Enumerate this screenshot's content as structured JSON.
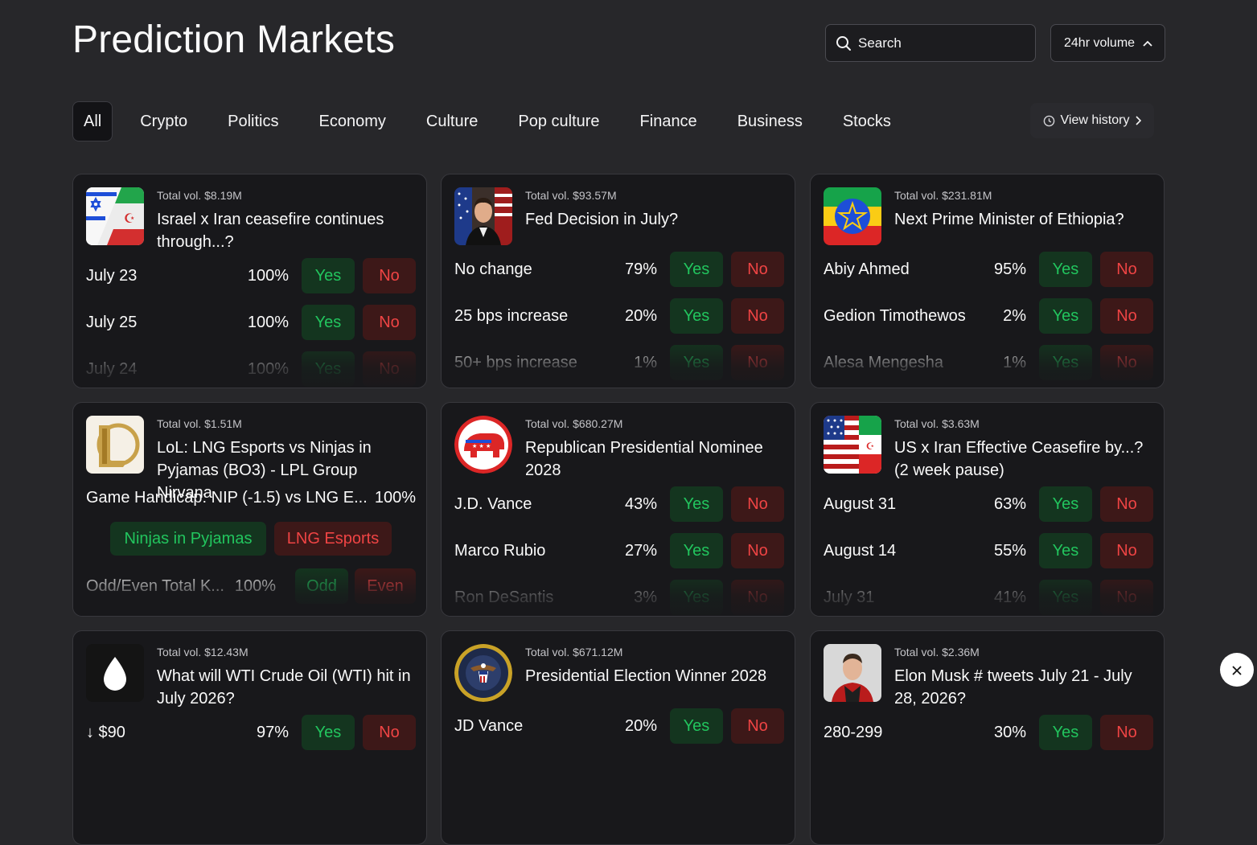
{
  "header": {
    "title": "Prediction Markets",
    "search_placeholder": "Search",
    "sort_label": "24hr volume"
  },
  "tabs": [
    "All",
    "Crypto",
    "Politics",
    "Economy",
    "Culture",
    "Pop culture",
    "Finance",
    "Business",
    "Stocks"
  ],
  "active_tab": "All",
  "history_label": "View history",
  "colors": {
    "yes": "#22c55e",
    "no": "#ef4444",
    "background": "#27272a",
    "card": "#18181b"
  },
  "cards": [
    {
      "volume": "Total vol. $8.19M",
      "question": "Israel x Iran ceasefire continues through...?",
      "icon": "israel-iran-flag-icon",
      "rows": [
        {
          "label": "July 23",
          "pct": "100%",
          "yes": "Yes",
          "no": "No"
        },
        {
          "label": "July 25",
          "pct": "100%",
          "yes": "Yes",
          "no": "No"
        },
        {
          "label": "July 24",
          "pct": "100%",
          "yes": "Yes",
          "no": "No"
        }
      ]
    },
    {
      "volume": "Total vol. $93.57M",
      "question": "Fed Decision in July?",
      "icon": "fed-chair-portrait-icon",
      "rows": [
        {
          "label": "No change",
          "pct": "79%",
          "yes": "Yes",
          "no": "No"
        },
        {
          "label": "25 bps increase",
          "pct": "20%",
          "yes": "Yes",
          "no": "No"
        },
        {
          "label": "50+ bps increase",
          "pct": "1%",
          "yes": "Yes",
          "no": "No"
        }
      ]
    },
    {
      "volume": "Total vol. $231.81M",
      "question": "Next Prime Minister of Ethiopia?",
      "icon": "ethiopia-flag-icon",
      "rows": [
        {
          "label": "Abiy Ahmed",
          "pct": "95%",
          "yes": "Yes",
          "no": "No"
        },
        {
          "label": "Gedion Timothewos",
          "pct": "2%",
          "yes": "Yes",
          "no": "No"
        },
        {
          "label": "Alesa Mengesha",
          "pct": "1%",
          "yes": "Yes",
          "no": "No"
        }
      ]
    },
    {
      "volume": "Total vol. $1.51M",
      "question": "LoL: LNG Esports vs Ninjas in Pyjamas (BO3) - LPL Group Nirvana",
      "icon": "league-of-legends-logo-icon",
      "handicap_label": "Game Handicap: NIP (-1.5) vs LNG E...",
      "handicap_pct": "100%",
      "team_a": "Ninjas in Pyjamas",
      "team_b": "LNG Esports",
      "oddeven_label": "Odd/Even Total K...",
      "oddeven_pct": "100%",
      "odd": "Odd",
      "even": "Even"
    },
    {
      "volume": "Total vol. $680.27M",
      "question": "Republican Presidential Nominee 2028",
      "icon": "republican-elephant-icon",
      "rows": [
        {
          "label": "J.D. Vance",
          "pct": "43%",
          "yes": "Yes",
          "no": "No"
        },
        {
          "label": "Marco Rubio",
          "pct": "27%",
          "yes": "Yes",
          "no": "No"
        },
        {
          "label": "Ron DeSantis",
          "pct": "3%",
          "yes": "Yes",
          "no": "No"
        }
      ]
    },
    {
      "volume": "Total vol. $3.63M",
      "question": "US x Iran Effective Ceasefire by...? (2 week pause)",
      "icon": "us-iran-flag-icon",
      "rows": [
        {
          "label": "August 31",
          "pct": "63%",
          "yes": "Yes",
          "no": "No"
        },
        {
          "label": "August 14",
          "pct": "55%",
          "yes": "Yes",
          "no": "No"
        },
        {
          "label": "July 31",
          "pct": "41%",
          "yes": "Yes",
          "no": "No"
        }
      ]
    },
    {
      "volume": "Total vol. $12.43M",
      "question": "What will WTI Crude Oil (WTI) hit in July 2026?",
      "icon": "oil-drop-icon",
      "rows": [
        {
          "label": "↓ $90",
          "pct": "97%",
          "yes": "Yes",
          "no": "No"
        }
      ]
    },
    {
      "volume": "Total vol. $671.12M",
      "question": "Presidential Election Winner 2028",
      "icon": "presidential-seal-icon",
      "rows": [
        {
          "label": "JD Vance",
          "pct": "20%",
          "yes": "Yes",
          "no": "No"
        }
      ]
    },
    {
      "volume": "Total vol. $2.36M",
      "question": "Elon Musk # tweets July 21 - July 28, 2026?",
      "icon": "elon-musk-portrait-icon",
      "rows": [
        {
          "label": "280-299",
          "pct": "30%",
          "yes": "Yes",
          "no": "No"
        }
      ]
    }
  ],
  "close_icon": "close-icon"
}
